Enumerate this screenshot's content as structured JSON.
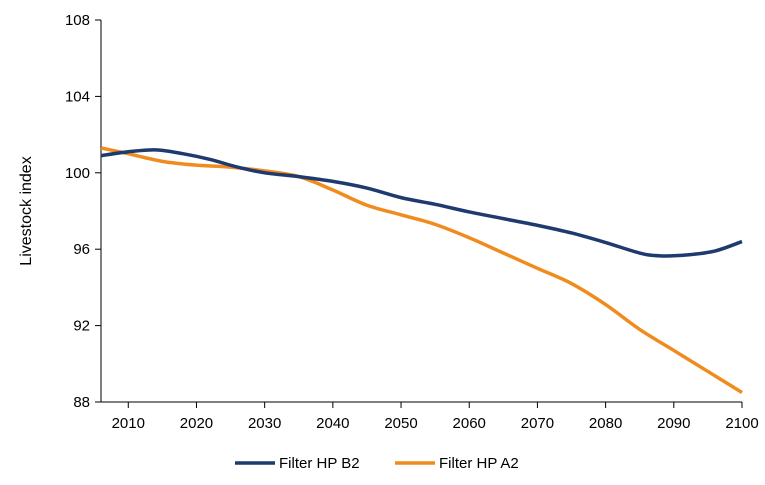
{
  "chart_data": {
    "type": "line",
    "title": "",
    "xlabel": "",
    "ylabel": "Livestock index",
    "xlim": [
      2006,
      2100
    ],
    "ylim": [
      88,
      108
    ],
    "x_ticks": [
      2010,
      2020,
      2030,
      2040,
      2050,
      2060,
      2070,
      2080,
      2090,
      2100
    ],
    "y_ticks": [
      88,
      92,
      96,
      100,
      104,
      108
    ],
    "grid": false,
    "legend_position": "bottom-center",
    "series": [
      {
        "name": "Filter HP B2",
        "color": "#1F3A6E",
        "x": [
          2006,
          2010,
          2014,
          2018,
          2022,
          2026,
          2030,
          2035,
          2040,
          2045,
          2050,
          2055,
          2060,
          2065,
          2070,
          2075,
          2080,
          2085,
          2088,
          2092,
          2096,
          2100
        ],
        "y": [
          100.9,
          101.1,
          101.2,
          101.0,
          100.7,
          100.3,
          100.0,
          99.8,
          99.55,
          99.2,
          98.7,
          98.35,
          97.95,
          97.6,
          97.25,
          96.85,
          96.35,
          95.8,
          95.65,
          95.7,
          95.9,
          96.4
        ]
      },
      {
        "name": "Filter HP A2",
        "color": "#F08C1E",
        "x": [
          2006,
          2010,
          2015,
          2020,
          2025,
          2030,
          2035,
          2040,
          2045,
          2050,
          2055,
          2060,
          2065,
          2070,
          2075,
          2080,
          2085,
          2090,
          2095,
          2100
        ],
        "y": [
          101.3,
          101.0,
          100.6,
          100.4,
          100.3,
          100.1,
          99.8,
          99.1,
          98.3,
          97.8,
          97.3,
          96.6,
          95.8,
          95.0,
          94.2,
          93.1,
          91.8,
          90.7,
          89.6,
          88.5
        ]
      }
    ]
  }
}
